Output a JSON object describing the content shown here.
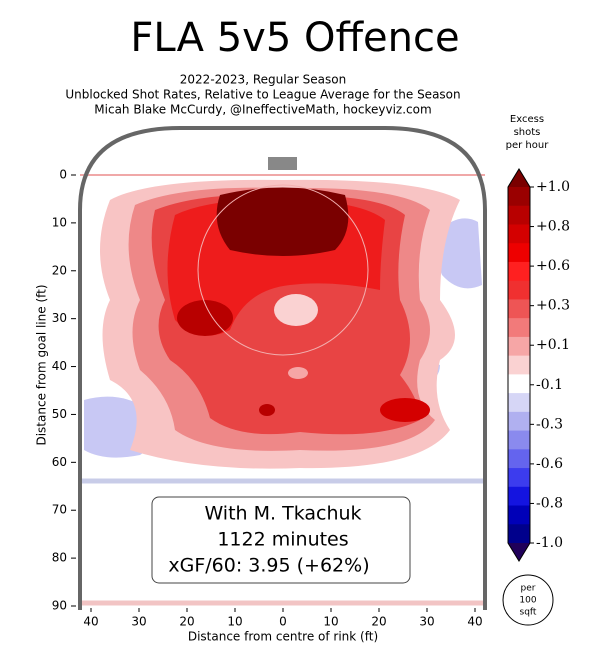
{
  "chart_data": {
    "type": "contour",
    "title": "FLA 5v5 Offence",
    "subtitle": [
      "2022-2023, Regular Season",
      "Unblocked Shot Rates, Relative to League Average for the Season",
      "Micah Blake McCurdy, @IneffectiveMath, hockeyviz.com"
    ],
    "x_label": "Distance from centre of rink (ft)",
    "y_label": "Distance from goal line (ft)",
    "xlim": [
      -42.5,
      42.5
    ],
    "ylim": [
      -9.5,
      90
    ],
    "xticks": [
      {
        "value": -40,
        "label": "40"
      },
      {
        "value": -30,
        "label": "30"
      },
      {
        "value": -20,
        "label": "20"
      },
      {
        "value": -10,
        "label": "10"
      },
      0,
      10,
      20,
      30,
      40
    ],
    "yticks": [
      0,
      10,
      20,
      30,
      40,
      50,
      60,
      70,
      80,
      90
    ],
    "colorbar": {
      "title": [
        "Excess",
        "shots",
        "per hour"
      ],
      "ticks": [
        {
          "value": 1,
          "label": "+1.0"
        },
        {
          "value": 0.8,
          "label": "+0.8"
        },
        {
          "value": 0.6,
          "label": "+0.6"
        },
        {
          "value": 0.3,
          "label": "+0.3"
        },
        {
          "value": 0.1,
          "label": "+0.1"
        },
        -0.1,
        -0.3,
        -0.6,
        -0.8,
        {
          "value": -1,
          "label": "-1.0"
        }
      ],
      "colors": [
        "#7a0000",
        "#9a0000",
        "#b80000",
        "#d40000",
        "#ee0000",
        "#ff2020",
        "#f03030",
        "#ee5555",
        "#f27a7a",
        "#f6a6a6",
        "#fad2d2",
        "#ffffff",
        "#d6d6f6",
        "#b0b0f0",
        "#8a8aee",
        "#6464ee",
        "#3c3cee",
        "#1414e0",
        "#0000b8",
        "#00008c",
        "#20005a"
      ]
    },
    "annotation": [
      "With M. Tkachuk",
      "1122 minutes",
      "xGF/60: 3.95 (+62%)"
    ],
    "area_note": [
      "per",
      "100",
      "sqft"
    ]
  }
}
